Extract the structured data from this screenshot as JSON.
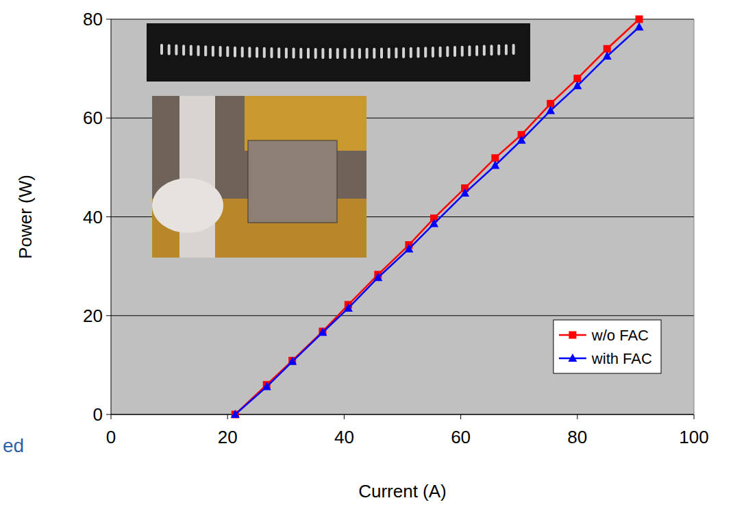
{
  "chart_data": {
    "type": "line",
    "x_label": "Current (A)",
    "y_label": "Power (W)",
    "x": [
      21.3,
      26.7,
      31.1,
      36.3,
      40.7,
      45.8,
      51.1,
      55.4,
      60.7,
      65.9,
      70.4,
      75.4,
      80.0,
      85.1,
      90.6
    ],
    "series": [
      {
        "name": "w/o FAC",
        "color": "#ff0000",
        "marker": "square",
        "line_style": "solid",
        "values": [
          0,
          6.0,
          10.9,
          16.8,
          22.2,
          28.3,
          34.3,
          39.7,
          45.8,
          51.9,
          56.6,
          62.9,
          68.0,
          74.0,
          80.0
        ]
      },
      {
        "name": "with FAC",
        "color": "#0000ff",
        "marker": "triangle",
        "line_style": "solid",
        "values": [
          0,
          5.6,
          10.7,
          16.6,
          21.5,
          27.7,
          33.5,
          38.6,
          44.8,
          50.4,
          55.5,
          61.5,
          66.5,
          72.5,
          78.4
        ]
      }
    ],
    "xlim": [
      0,
      100
    ],
    "xticks": [
      0,
      20,
      40,
      60,
      80,
      100
    ],
    "ylim": [
      0,
      80
    ],
    "yticks": [
      0,
      20,
      40,
      60,
      80
    ],
    "grid": true,
    "legend": "lower-right",
    "annotations": [
      "ed"
    ]
  }
}
